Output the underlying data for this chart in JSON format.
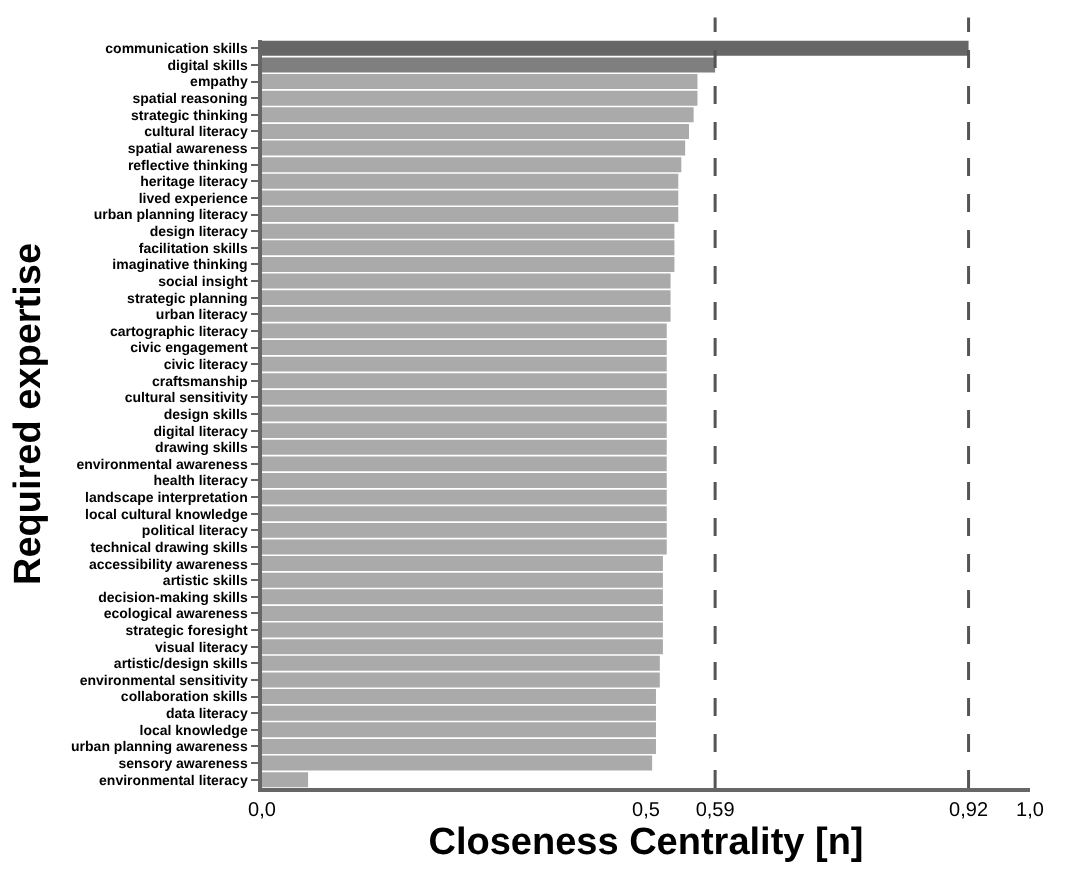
{
  "chart_data": {
    "type": "bar",
    "orientation": "horizontal",
    "xlabel": "Closeness Centrality [n]",
    "ylabel": "Required expertise",
    "categories": [
      "communication skills",
      "digital skills",
      "empathy",
      "spatial reasoning",
      "strategic thinking",
      "cultural literacy",
      "spatial awareness",
      "reflective thinking",
      "heritage literacy",
      "lived experience",
      "urban planning literacy",
      "design literacy",
      "facilitation skills",
      "imaginative thinking",
      "social insight",
      "strategic planning",
      "urban literacy",
      "cartographic literacy",
      "civic engagement",
      "civic literacy",
      "craftsmanship",
      "cultural sensitivity",
      "design skills",
      "digital literacy",
      "drawing skills",
      "environmental awareness",
      "health literacy",
      "landscape interpretation",
      "local cultural knowledge",
      "political literacy",
      "technical drawing skills",
      "accessibility awareness",
      "artistic skills",
      "decision-making skills",
      "ecological awareness",
      "strategic foresight",
      "visual literacy",
      "artistic/design skills",
      "environmental sensitivity",
      "collaboration skills",
      "data literacy",
      "local knowledge",
      "urban planning awareness",
      "sensory awareness",
      "environmental literacy"
    ],
    "values": [
      0.92,
      0.59,
      0.567,
      0.567,
      0.562,
      0.556,
      0.551,
      0.546,
      0.542,
      0.542,
      0.542,
      0.537,
      0.537,
      0.537,
      0.532,
      0.532,
      0.532,
      0.527,
      0.527,
      0.527,
      0.527,
      0.527,
      0.527,
      0.527,
      0.527,
      0.527,
      0.527,
      0.527,
      0.527,
      0.527,
      0.527,
      0.522,
      0.522,
      0.522,
      0.522,
      0.522,
      0.522,
      0.518,
      0.518,
      0.513,
      0.513,
      0.513,
      0.513,
      0.508,
      0.06
    ],
    "colors": [
      "#666666",
      "#7f7f7f",
      "#aaaaaa",
      "#aaaaaa",
      "#aaaaaa",
      "#aaaaaa",
      "#aaaaaa",
      "#aaaaaa",
      "#aaaaaa",
      "#aaaaaa",
      "#aaaaaa",
      "#aaaaaa",
      "#aaaaaa",
      "#aaaaaa",
      "#aaaaaa",
      "#aaaaaa",
      "#aaaaaa",
      "#aaaaaa",
      "#aaaaaa",
      "#aaaaaa",
      "#aaaaaa",
      "#aaaaaa",
      "#aaaaaa",
      "#aaaaaa",
      "#aaaaaa",
      "#aaaaaa",
      "#aaaaaa",
      "#aaaaaa",
      "#aaaaaa",
      "#aaaaaa",
      "#aaaaaa",
      "#aaaaaa",
      "#aaaaaa",
      "#aaaaaa",
      "#aaaaaa",
      "#aaaaaa",
      "#aaaaaa",
      "#aaaaaa",
      "#aaaaaa",
      "#aaaaaa",
      "#aaaaaa",
      "#aaaaaa",
      "#aaaaaa",
      "#aaaaaa",
      "#aaaaaa"
    ],
    "xlim": [
      0,
      1.0
    ],
    "xticks": [
      {
        "value": 0,
        "label": "0,0"
      },
      {
        "value": 0.5,
        "label": "0,5"
      },
      {
        "value": 0.59,
        "label": "0,59"
      },
      {
        "value": 0.92,
        "label": "0,92"
      },
      {
        "value": 1.0,
        "label": "1,0"
      }
    ],
    "ref_lines": [
      {
        "axis": "x",
        "value": 0.59,
        "color": "#555555",
        "line_style": "dashed"
      },
      {
        "axis": "x",
        "value": 0.92,
        "color": "#555555",
        "line_style": "dashed"
      }
    ],
    "legend": false
  }
}
